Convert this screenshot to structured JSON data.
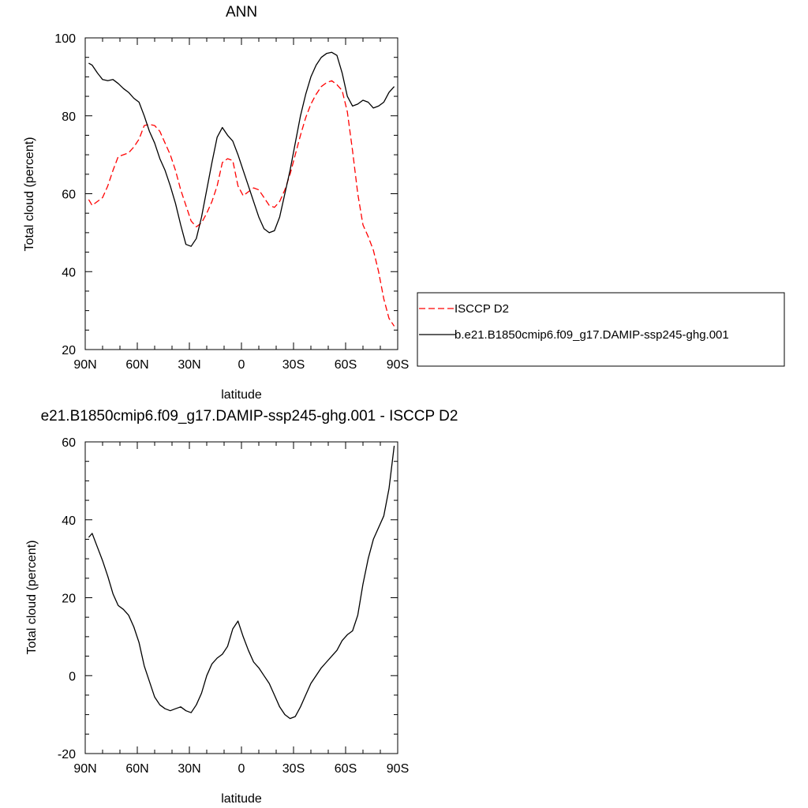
{
  "chart_data": [
    {
      "type": "line",
      "title": "ANN",
      "xlabel": "latitude",
      "ylabel": "Total cloud (percent)",
      "xlim": [
        -90,
        90
      ],
      "ylim": [
        20,
        100
      ],
      "xticks": [
        {
          "value": -90,
          "label": "90N"
        },
        {
          "value": -60,
          "label": "60N"
        },
        {
          "value": -30,
          "label": "30N"
        },
        {
          "value": 0,
          "label": "0"
        },
        {
          "value": 30,
          "label": "30S"
        },
        {
          "value": 60,
          "label": "60S"
        },
        {
          "value": 90,
          "label": "90S"
        }
      ],
      "yticks": [
        20,
        40,
        60,
        80,
        100
      ],
      "legend_position": "right",
      "series": [
        {
          "name": "ISCCP D2",
          "color": "#ff0000",
          "dash": "dashed",
          "x": [
            -88,
            -86,
            -83,
            -80,
            -77,
            -74,
            -71,
            -68,
            -65,
            -62,
            -59,
            -56,
            -53,
            -50,
            -47,
            -44,
            -41,
            -38,
            -35,
            -32,
            -29,
            -26,
            -23,
            -20,
            -17,
            -14,
            -11,
            -8,
            -5,
            -2,
            1,
            4,
            7,
            10,
            13,
            16,
            19,
            22,
            25,
            28,
            31,
            34,
            37,
            40,
            43,
            46,
            49,
            52,
            55,
            58,
            61,
            64,
            67,
            70,
            73,
            76,
            79,
            82,
            85,
            88
          ],
          "values": [
            58.5,
            57,
            58,
            59,
            62,
            66,
            69.5,
            70,
            70.5,
            72,
            74,
            77.5,
            77.8,
            77.5,
            76,
            73,
            70,
            66,
            61,
            57,
            53,
            51.5,
            52.5,
            55,
            58,
            62,
            68,
            69,
            68.5,
            62,
            59.5,
            60.5,
            61.5,
            61,
            59,
            57,
            56.5,
            58,
            61,
            65,
            70,
            75,
            79.5,
            83,
            85.5,
            87.5,
            88.5,
            89,
            88,
            86.5,
            81,
            71,
            60,
            52,
            49,
            45.5,
            40,
            33,
            28,
            26
          ]
        },
        {
          "name": "b.e21.B1850cmip6.f09_g17.DAMIP-ssp245-ghg.001",
          "color": "#000000",
          "dash": "solid",
          "x": [
            -88,
            -86,
            -83,
            -80,
            -77,
            -74,
            -71,
            -68,
            -65,
            -62,
            -59,
            -56,
            -53,
            -50,
            -47,
            -44,
            -41,
            -38,
            -35,
            -32,
            -29,
            -26,
            -23,
            -20,
            -17,
            -14,
            -11,
            -8,
            -5,
            -2,
            1,
            4,
            7,
            10,
            13,
            16,
            19,
            22,
            25,
            28,
            31,
            34,
            37,
            40,
            43,
            46,
            49,
            52,
            55,
            58,
            61,
            64,
            67,
            70,
            73,
            76,
            79,
            82,
            85,
            88
          ],
          "values": [
            93.5,
            93,
            91,
            89.3,
            89,
            89.3,
            88.3,
            87,
            86,
            84.5,
            83.5,
            80,
            76,
            73,
            69,
            66,
            62,
            57.5,
            52,
            47,
            46.5,
            48.5,
            54,
            61,
            68,
            74.5,
            77,
            75,
            73.5,
            70,
            66,
            62,
            58,
            54,
            51,
            50,
            50.5,
            54,
            60,
            66,
            73,
            80,
            85.5,
            90,
            93,
            95,
            96,
            96.3,
            95.5,
            91,
            85,
            82.5,
            83,
            84,
            83.5,
            82,
            82.5,
            83.5,
            86,
            87.5
          ]
        }
      ]
    },
    {
      "type": "line",
      "title": "e21.B1850cmip6.f09_g17.DAMIP-ssp245-ghg.001 - ISCCP D2",
      "xlabel": "latitude",
      "ylabel": "Total cloud (percent)",
      "xlim": [
        -90,
        90
      ],
      "ylim": [
        -20,
        60
      ],
      "xticks": [
        {
          "value": -90,
          "label": "90N"
        },
        {
          "value": -60,
          "label": "60N"
        },
        {
          "value": -30,
          "label": "30N"
        },
        {
          "value": 0,
          "label": "0"
        },
        {
          "value": 30,
          "label": "30S"
        },
        {
          "value": 60,
          "label": "60S"
        },
        {
          "value": 90,
          "label": "90S"
        }
      ],
      "yticks": [
        -20,
        0,
        20,
        40,
        60
      ],
      "series": [
        {
          "color": "#000000",
          "dash": "solid",
          "x": [
            -88,
            -86,
            -83,
            -80,
            -77,
            -74,
            -71,
            -68,
            -65,
            -62,
            -59,
            -56,
            -53,
            -50,
            -47,
            -44,
            -41,
            -38,
            -35,
            -32,
            -29,
            -26,
            -23,
            -20,
            -17,
            -14,
            -11,
            -8,
            -5,
            -2,
            1,
            4,
            7,
            10,
            13,
            16,
            19,
            22,
            25,
            28,
            31,
            34,
            37,
            40,
            43,
            46,
            49,
            52,
            55,
            58,
            61,
            64,
            67,
            70,
            73,
            76,
            79,
            82,
            85,
            88
          ],
          "values": [
            35.5,
            36.5,
            33,
            29.5,
            25.5,
            21,
            18,
            17,
            15.5,
            12.5,
            8.5,
            2.5,
            -1.5,
            -5.5,
            -7.5,
            -8.5,
            -9,
            -8.5,
            -8,
            -9,
            -9.5,
            -7.5,
            -4.5,
            0,
            3,
            4.5,
            5.5,
            7.5,
            12,
            14,
            10,
            6.5,
            3.5,
            2,
            0,
            -2,
            -5,
            -8,
            -10,
            -11,
            -10.5,
            -8,
            -5,
            -2,
            0,
            2,
            3.5,
            5,
            6.5,
            9,
            10.5,
            11.5,
            15.5,
            23.5,
            30,
            35,
            38,
            41,
            48,
            59
          ]
        }
      ]
    }
  ]
}
